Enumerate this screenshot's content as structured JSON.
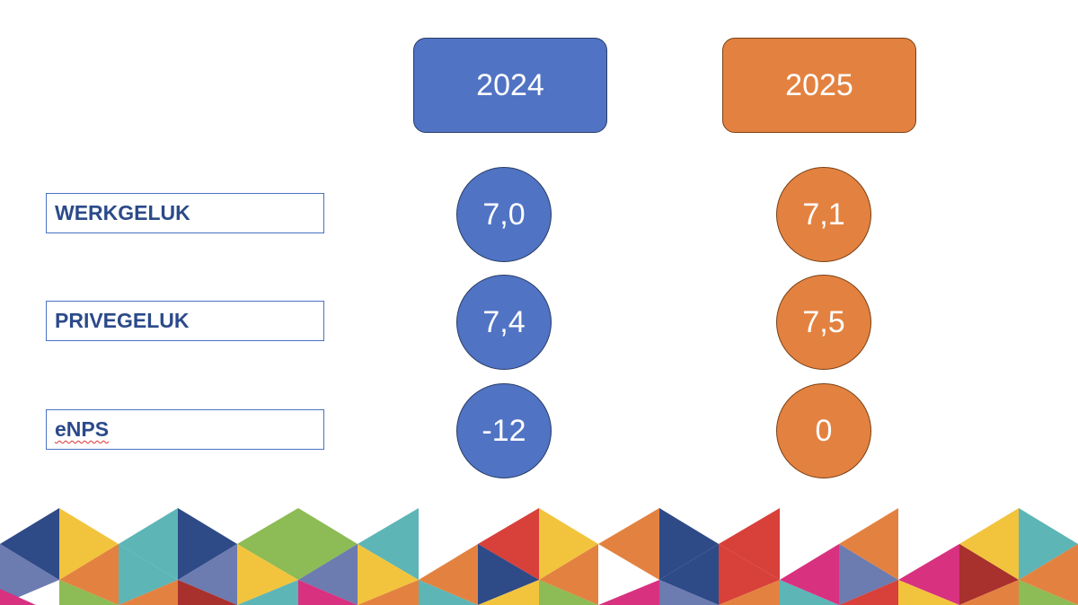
{
  "years": {
    "col_2024": "2024",
    "col_2025": "2025"
  },
  "metrics": [
    {
      "label": "WERKGELUK",
      "value_2024": "7,0",
      "value_2025": "7,1"
    },
    {
      "label": "PRIVEGELUK",
      "value_2024": "7,4",
      "value_2025": "7,5"
    },
    {
      "label": "eNPS",
      "value_2024": "-12",
      "value_2025": "0"
    }
  ],
  "colors": {
    "blue": "#5073c4",
    "orange": "#e38240",
    "label_text": "#2b4a8a"
  }
}
